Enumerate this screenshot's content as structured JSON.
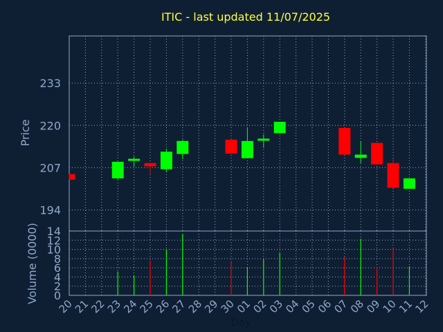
{
  "chart_data": {
    "type": "candlestick",
    "title": "ITIC - last updated 11/07/2025",
    "xlabel": "Day",
    "price_panel": {
      "ylabel": "Price",
      "yticks": [
        194,
        207,
        220,
        233
      ],
      "ylim": [
        187.5,
        247.5
      ]
    },
    "volume_panel": {
      "ylabel": "Volume (0000)",
      "yticks": [
        0,
        2,
        4,
        6,
        8,
        10,
        12,
        14
      ],
      "ylim": [
        0,
        14
      ]
    },
    "x_ticks": [
      "20",
      "21",
      "22",
      "23",
      "24",
      "25",
      "26",
      "27",
      "28",
      "29",
      "30",
      "01",
      "02",
      "03",
      "04",
      "05",
      "06",
      "07",
      "08",
      "09",
      "10",
      "11",
      "12"
    ],
    "colors": {
      "up": "#00ff00",
      "down": "#ff0000",
      "grid": "#8fa9c9",
      "title": "#ffff3c"
    },
    "candles": [
      {
        "day": "20",
        "open": 205.0,
        "close": 203.3,
        "high": 205.0,
        "low": 203.3,
        "volume": 0
      },
      {
        "day": "23",
        "open": 203.7,
        "close": 208.8,
        "high": 208.8,
        "low": 203.3,
        "volume": 5.2
      },
      {
        "day": "24",
        "open": 209.2,
        "close": 209.6,
        "high": 210.4,
        "low": 207.2,
        "volume": 4.3
      },
      {
        "day": "25",
        "open": 208.4,
        "close": 207.4,
        "high": 208.4,
        "low": 205.2,
        "volume": 7.6
      },
      {
        "day": "26",
        "open": 206.5,
        "close": 211.9,
        "high": 212.8,
        "low": 205.6,
        "volume": 10.0
      },
      {
        "day": "27",
        "open": 211.2,
        "close": 215.2,
        "high": 215.6,
        "low": 209.6,
        "volume": 13.4
      },
      {
        "day": "30",
        "open": 215.6,
        "close": 211.3,
        "high": 215.9,
        "low": 211.3,
        "volume": 7.5
      },
      {
        "day": "01",
        "open": 209.9,
        "close": 215.2,
        "high": 219.3,
        "low": 209.9,
        "volume": 6.0
      },
      {
        "day": "02",
        "open": 215.4,
        "close": 215.8,
        "high": 217.2,
        "low": 213.1,
        "volume": 7.9
      },
      {
        "day": "03",
        "open": 217.6,
        "close": 221.1,
        "high": 221.1,
        "low": 217.6,
        "volume": 9.3
      },
      {
        "day": "07",
        "open": 219.2,
        "close": 211.0,
        "high": 219.2,
        "low": 211.0,
        "volume": 8.3
      },
      {
        "day": "08",
        "open": 210.0,
        "close": 211.0,
        "high": 215.2,
        "low": 208.4,
        "volume": 12.3
      },
      {
        "day": "09",
        "open": 214.6,
        "close": 208.0,
        "high": 214.6,
        "low": 208.0,
        "volume": 6.1
      },
      {
        "day": "10",
        "open": 208.4,
        "close": 200.8,
        "high": 209.6,
        "low": 200.8,
        "volume": 10.3
      },
      {
        "day": "11",
        "open": 200.5,
        "close": 203.7,
        "high": 203.7,
        "low": 200.5,
        "volume": 6.3
      }
    ]
  }
}
